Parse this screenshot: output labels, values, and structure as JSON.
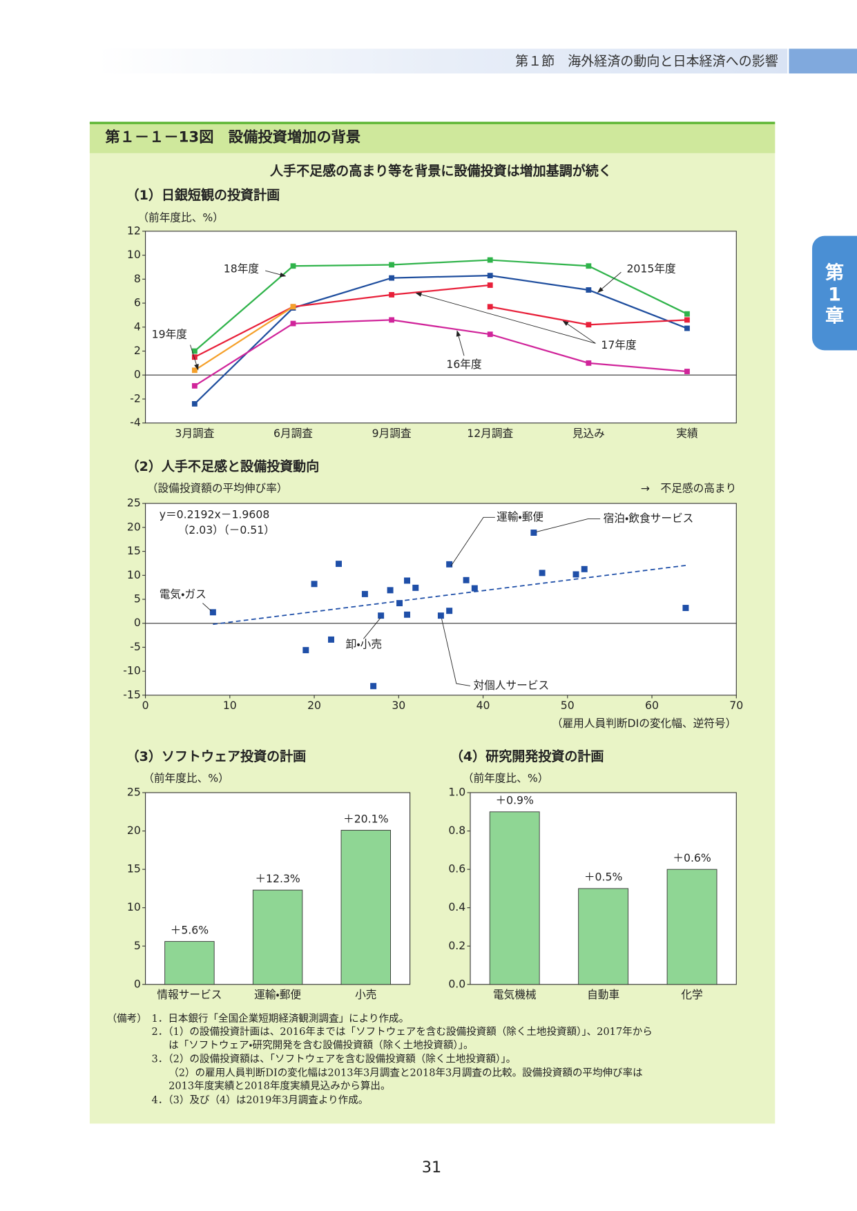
{
  "header": {
    "section": "第１節　海外経済の動向と日本経済への影響",
    "tab": [
      "第",
      "1",
      "章"
    ]
  },
  "figure": {
    "title": "第１－１－13図　設備投資増加の背景",
    "subtitle": "人手不足感の高まり等を背景に設備投資は増加基調が続く"
  },
  "chart_data": [
    {
      "type": "line",
      "title": "（1）日銀短観の投資計画",
      "y_label": "（前年度比、%）",
      "categories": [
        "3月調査",
        "6月調査",
        "9月調査",
        "12月調査",
        "見込み",
        "実績"
      ],
      "series": [
        {
          "name": "18年度",
          "color": "#2fb34a",
          "values": [
            2.0,
            9.1,
            9.2,
            9.6,
            9.1,
            5.1
          ]
        },
        {
          "name": "2015年度",
          "color": "#1f4e9e",
          "values": [
            -2.4,
            5.6,
            8.1,
            8.3,
            7.1,
            3.9
          ]
        },
        {
          "name": "17年度",
          "color": "#e8203a",
          "values": [
            1.5,
            5.7,
            6.7,
            7.5,
            null,
            null
          ]
        },
        {
          "color": "#e8203a",
          "values": [
            null,
            null,
            null,
            5.7,
            4.2,
            4.6
          ]
        },
        {
          "name": "16年度",
          "color": "#d0249a",
          "values": [
            -0.9,
            4.3,
            4.6,
            3.4,
            1.0,
            0.3
          ]
        },
        {
          "name": "19年度",
          "color": "#f5a02a",
          "values": [
            0.4,
            5.7,
            null,
            null,
            null,
            null
          ]
        }
      ],
      "ylim": [
        -4,
        12
      ],
      "yticks": [
        -4,
        -2,
        0,
        2,
        4,
        6,
        8,
        10,
        12
      ],
      "grid": false
    },
    {
      "type": "scatter",
      "title": "（2）人手不足感と設備投資動向",
      "y_label": "（設備投資額の平均伸び率）",
      "x_label": "（雇用人員判断DIの変化幅、逆符号）",
      "note": "→　不足感の高まり",
      "x": [
        8.0,
        20.0,
        22.9,
        26.0,
        19.0,
        22.0,
        27.0,
        27.9,
        29.0,
        30.1,
        31.0,
        31.0,
        32.0,
        35.0,
        36.0,
        36.0,
        38.0,
        39.0,
        46.0,
        47.0,
        51.0,
        52.0,
        64.0
      ],
      "values": [
        2.3,
        8.2,
        12.4,
        6.1,
        -5.6,
        -3.4,
        -13.1,
        1.6,
        6.9,
        4.2,
        8.9,
        1.8,
        7.4,
        1.6,
        2.6,
        12.3,
        9.0,
        7.3,
        18.9,
        10.5,
        10.2,
        11.3,
        3.2
      ],
      "point_labels": [
        "電気・ガス",
        null,
        null,
        null,
        null,
        null,
        null,
        "卸・小売",
        null,
        null,
        null,
        null,
        null,
        "対個人サービス",
        null,
        "運輸・郵便",
        null,
        null,
        "宿泊・飲食サービス",
        null,
        null,
        null,
        null
      ],
      "color": "#1f4fa8",
      "trend": {
        "slope": 0.2192,
        "intercept": -1.9608,
        "equation": "y＝0.2192x－1.9608",
        "t_values": "（2.03）（－0.51）"
      },
      "xlim": [
        0,
        70
      ],
      "xticks": [
        0,
        10,
        20,
        30,
        40,
        50,
        60,
        70
      ],
      "ylim": [
        -15,
        25
      ],
      "yticks": [
        -15,
        -10,
        -5,
        0,
        5,
        10,
        15,
        20,
        25
      ],
      "grid": false
    },
    {
      "type": "bar",
      "title": "（3）ソフトウェア投資の計画",
      "y_label": "（前年度比、%）",
      "categories": [
        "情報サービス",
        "運輸・郵便",
        "小売"
      ],
      "values": [
        5.6,
        12.3,
        20.1
      ],
      "value_labels": [
        "＋5.6%",
        "＋12.3%",
        "＋20.1%"
      ],
      "color": "#8fd694",
      "ylim": [
        0,
        25
      ],
      "yticks": [
        0,
        5,
        10,
        15,
        20,
        25
      ],
      "grid": false
    },
    {
      "type": "bar",
      "title": "（4）研究開発投資の計画",
      "y_label": "（前年度比、%）",
      "categories": [
        "電気機械",
        "自動車",
        "化学"
      ],
      "values": [
        0.9,
        0.5,
        0.6
      ],
      "value_labels": [
        "＋0.9%",
        "＋0.5%",
        "＋0.6%"
      ],
      "color": "#8fd694",
      "ylim": [
        0,
        1
      ],
      "yticks": [
        {
          "value": 0,
          "label": "0.0"
        },
        0.2,
        0.4,
        0.6,
        0.8,
        {
          "value": 1,
          "label": "1.0"
        }
      ],
      "grid": false
    }
  ],
  "notes": {
    "label": "（備考）",
    "lines": [
      "1．日本銀行「全国企業短期経済観測調査」により作成。",
      "2．（1）の設備投資計画は、2016年までは「ソフトウェアを含む設備投資額（除く土地投資額）」、2017年から",
      "は「ソフトウェア・研究開発を含む設備投資額（除く土地投資額）」。",
      "3．（2）の設備投資額は、「ソフトウェアを含む設備投資額（除く土地投資額）」。",
      "（2）の雇用人員判断DIの変化幅は2013年3月調査と2018年3月調査の比較。設備投資額の平均伸び率は",
      "2013年度実績と2018年度実績見込みから算出。",
      "4．（3）及び（4）は2019年3月調査より作成。"
    ]
  },
  "page_number": "31"
}
